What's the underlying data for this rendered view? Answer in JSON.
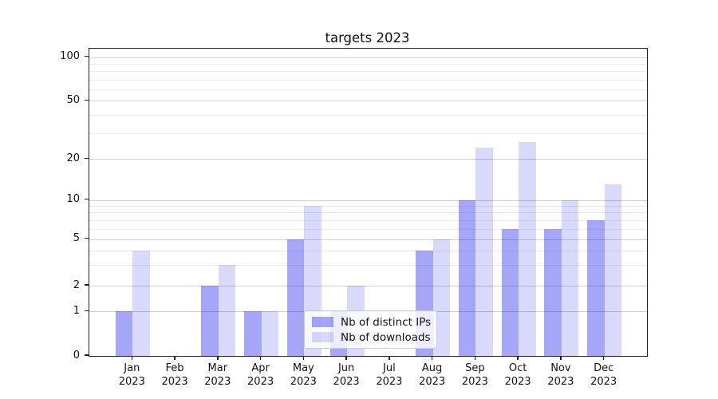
{
  "chart_data": {
    "type": "bar",
    "title": "targets 2023",
    "categories": [
      "Jan",
      "Feb",
      "Mar",
      "Apr",
      "May",
      "Jun",
      "Jul",
      "Aug",
      "Sep",
      "Oct",
      "Nov",
      "Dec"
    ],
    "category_year": "2023",
    "series": [
      {
        "name": "Nb of distinct IPs",
        "values": [
          1,
          0,
          2,
          1,
          5,
          1,
          0,
          4,
          10,
          6,
          6,
          7
        ],
        "color_hex": "#0000ee",
        "alpha": 0.35
      },
      {
        "name": "Nb of downloads",
        "values": [
          4,
          0,
          3,
          1,
          9,
          2,
          0,
          5,
          24,
          26,
          10,
          13
        ],
        "color_hex": "#0000ee",
        "alpha": 0.15
      }
    ],
    "yticks": [
      0,
      1,
      2,
      5,
      10,
      20,
      50,
      100
    ],
    "minor_yticks": [
      3,
      4,
      6,
      7,
      8,
      9,
      30,
      40,
      60,
      70,
      80,
      90
    ],
    "yscale": "symlog",
    "ylim_top_value": 130,
    "grid": true,
    "legend": {
      "location": "inside-bottom-center"
    },
    "colors": {
      "grid_major": "#cfcfcf",
      "grid_minor": "#ededed",
      "axes_edge": "#222222",
      "legend_edge": "#cccccc"
    }
  }
}
